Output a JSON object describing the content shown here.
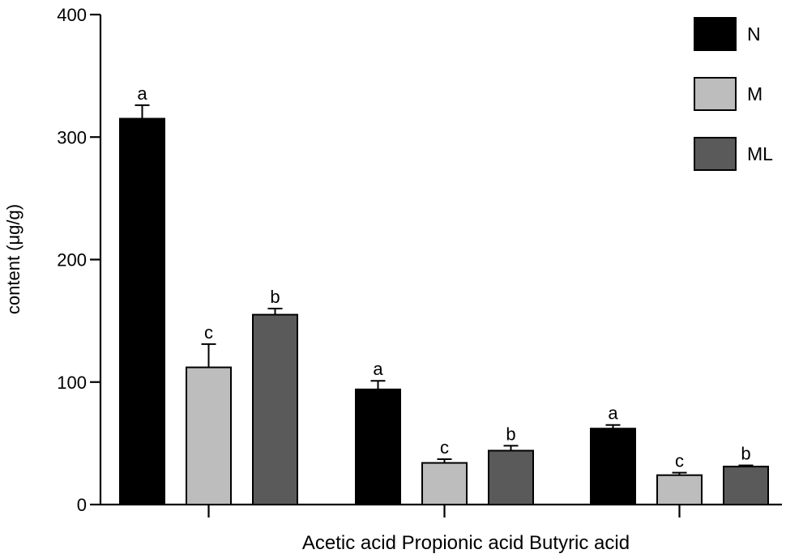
{
  "chart_data": {
    "type": "bar",
    "title": "",
    "xlabel": "Acetic acid Propionic acid Butyric acid",
    "ylabel": "content (μg/g)",
    "ylim": [
      0,
      400
    ],
    "yticks": [
      0,
      100,
      200,
      300,
      400
    ],
    "categories": [
      "Acetic acid",
      "Propionic acid",
      "Butyric acid"
    ],
    "legend_position": "top-right",
    "grid": false,
    "series": [
      {
        "name": "N",
        "color": "#000000",
        "values": [
          315,
          94,
          62
        ],
        "errors": [
          11,
          7,
          3
        ],
        "letters": [
          "a",
          "a",
          "a"
        ]
      },
      {
        "name": "M",
        "color": "#bdbdbd",
        "values": [
          112,
          34,
          24
        ],
        "errors": [
          19,
          3,
          2
        ],
        "letters": [
          "c",
          "c",
          "c"
        ]
      },
      {
        "name": "ML",
        "color": "#5a5a5a",
        "values": [
          155,
          44,
          31
        ],
        "errors": [
          5,
          4,
          1
        ],
        "letters": [
          "b",
          "b",
          "b"
        ]
      }
    ]
  }
}
